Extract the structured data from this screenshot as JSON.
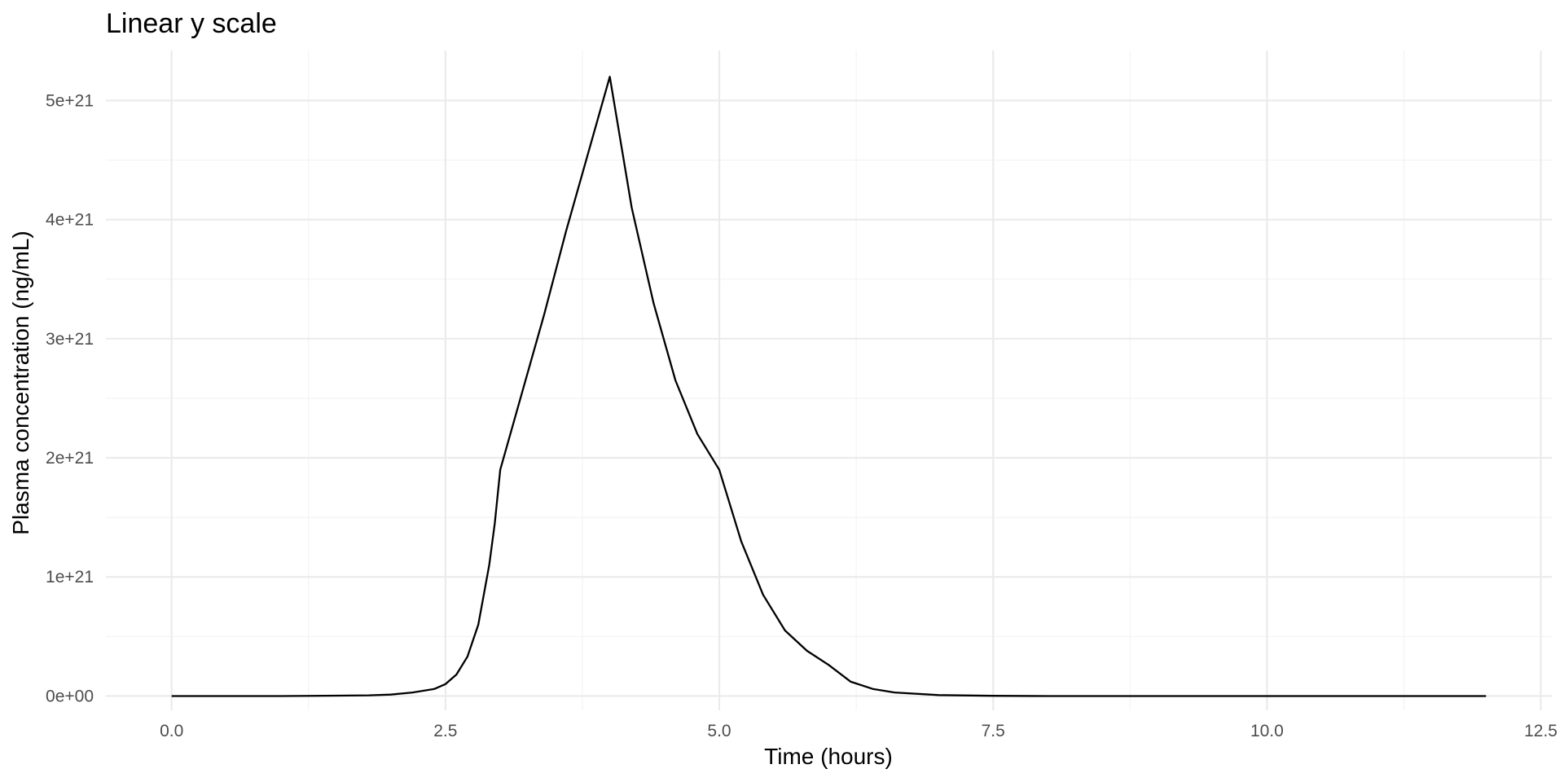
{
  "chart_data": {
    "type": "line",
    "title": "Linear y scale",
    "xlabel": "Time (hours)",
    "ylabel": "Plasma concentration (ng/mL)",
    "xlim": [
      -0.6,
      12.6
    ],
    "ylim": [
      -1.2e+20,
      5.42e+21
    ],
    "x_ticks": [
      0,
      2.5,
      5,
      7.5,
      10,
      12.5
    ],
    "x_tick_labels": [
      "0.0",
      "2.5",
      "5.0",
      "7.5",
      "10.0",
      "12.5"
    ],
    "y_ticks": [
      0,
      1e+21,
      2e+21,
      3e+21,
      4e+21,
      5e+21
    ],
    "y_tick_labels": [
      "0e+00",
      "1e+21",
      "2e+21",
      "3e+21",
      "4e+21",
      "5e+21"
    ],
    "grid": true,
    "legend": "none",
    "series": [
      {
        "color": "#000000",
        "x": [
          0,
          1.0,
          1.5,
          1.8,
          2.0,
          2.2,
          2.4,
          2.5,
          2.6,
          2.7,
          2.8,
          2.9,
          2.95,
          3.0,
          3.2,
          3.4,
          3.6,
          3.8,
          4.0,
          4.2,
          4.4,
          4.6,
          4.8,
          5.0,
          5.2,
          5.4,
          5.6,
          5.8,
          6.0,
          6.2,
          6.4,
          6.6,
          7.0,
          7.5,
          8.0,
          9.0,
          10.0,
          11.0,
          12.0
        ],
        "y": [
          0,
          0,
          3e+18,
          6e+18,
          1.2e+19,
          3e+19,
          6e+19,
          1e+20,
          1.8e+20,
          3.3e+20,
          6e+20,
          1.1e+21,
          1.45e+21,
          1.9e+21,
          2.55e+21,
          3.2e+21,
          3.9e+21,
          4.55e+21,
          5.2e+21,
          4.1e+21,
          3.3e+21,
          2.65e+21,
          2.2e+21,
          1.9e+21,
          1.3e+21,
          8.5e+20,
          5.5e+20,
          3.8e+20,
          2.6e+20,
          1.2e+20,
          6e+19,
          3e+19,
          8e+18,
          2e+18,
          0,
          0,
          0,
          0,
          0
        ]
      }
    ]
  }
}
